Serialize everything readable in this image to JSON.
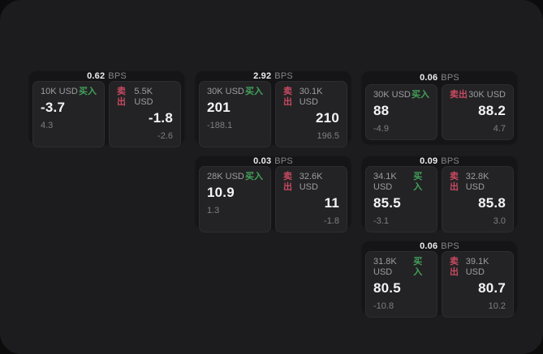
{
  "theme": {
    "backdrop": "#0c0c0d",
    "window_bg": "#1c1c1e",
    "card_bg": "#151517",
    "cell_bg": "#232325",
    "buy_color": "#43a15a",
    "sell_color": "#c74a60",
    "value_color": "#f4f4f5",
    "muted_color": "#9d9da2"
  },
  "labels": {
    "bps": "BPS",
    "buy": "买入",
    "sell": "卖出"
  },
  "cards": [
    {
      "bps": "0.62",
      "buy": {
        "size": "10K USD",
        "value": "-3.7",
        "delta": "4.3"
      },
      "sell": {
        "size": "5.5K USD",
        "value": "-1.8",
        "delta": "-2.6"
      }
    },
    {
      "bps": "2.92",
      "buy": {
        "size": "30K USD",
        "value": "201",
        "delta": "-188.1"
      },
      "sell": {
        "size": "30.1K USD",
        "value": "210",
        "delta": "196.5"
      }
    },
    {
      "bps": "0.06",
      "buy": {
        "size": "30K USD",
        "value": "88",
        "delta": "-4.9"
      },
      "sell": {
        "size": "30K USD",
        "value": "88.2",
        "delta": "4.7"
      }
    },
    {
      "bps": "0.03",
      "buy": {
        "size": "28K USD",
        "value": "10.9",
        "delta": "1.3"
      },
      "sell": {
        "size": "32.6K USD",
        "value": "11",
        "delta": "-1.8"
      }
    },
    {
      "bps": "0.09",
      "buy": {
        "size": "34.1K USD",
        "value": "85.5",
        "delta": "-3.1"
      },
      "sell": {
        "size": "32.8K USD",
        "value": "85.8",
        "delta": "3.0"
      }
    },
    {
      "bps": "0.06",
      "buy": {
        "size": "31.8K USD",
        "value": "80.5",
        "delta": "-10.8"
      },
      "sell": {
        "size": "39.1K USD",
        "value": "80.7",
        "delta": "10.2"
      }
    }
  ]
}
